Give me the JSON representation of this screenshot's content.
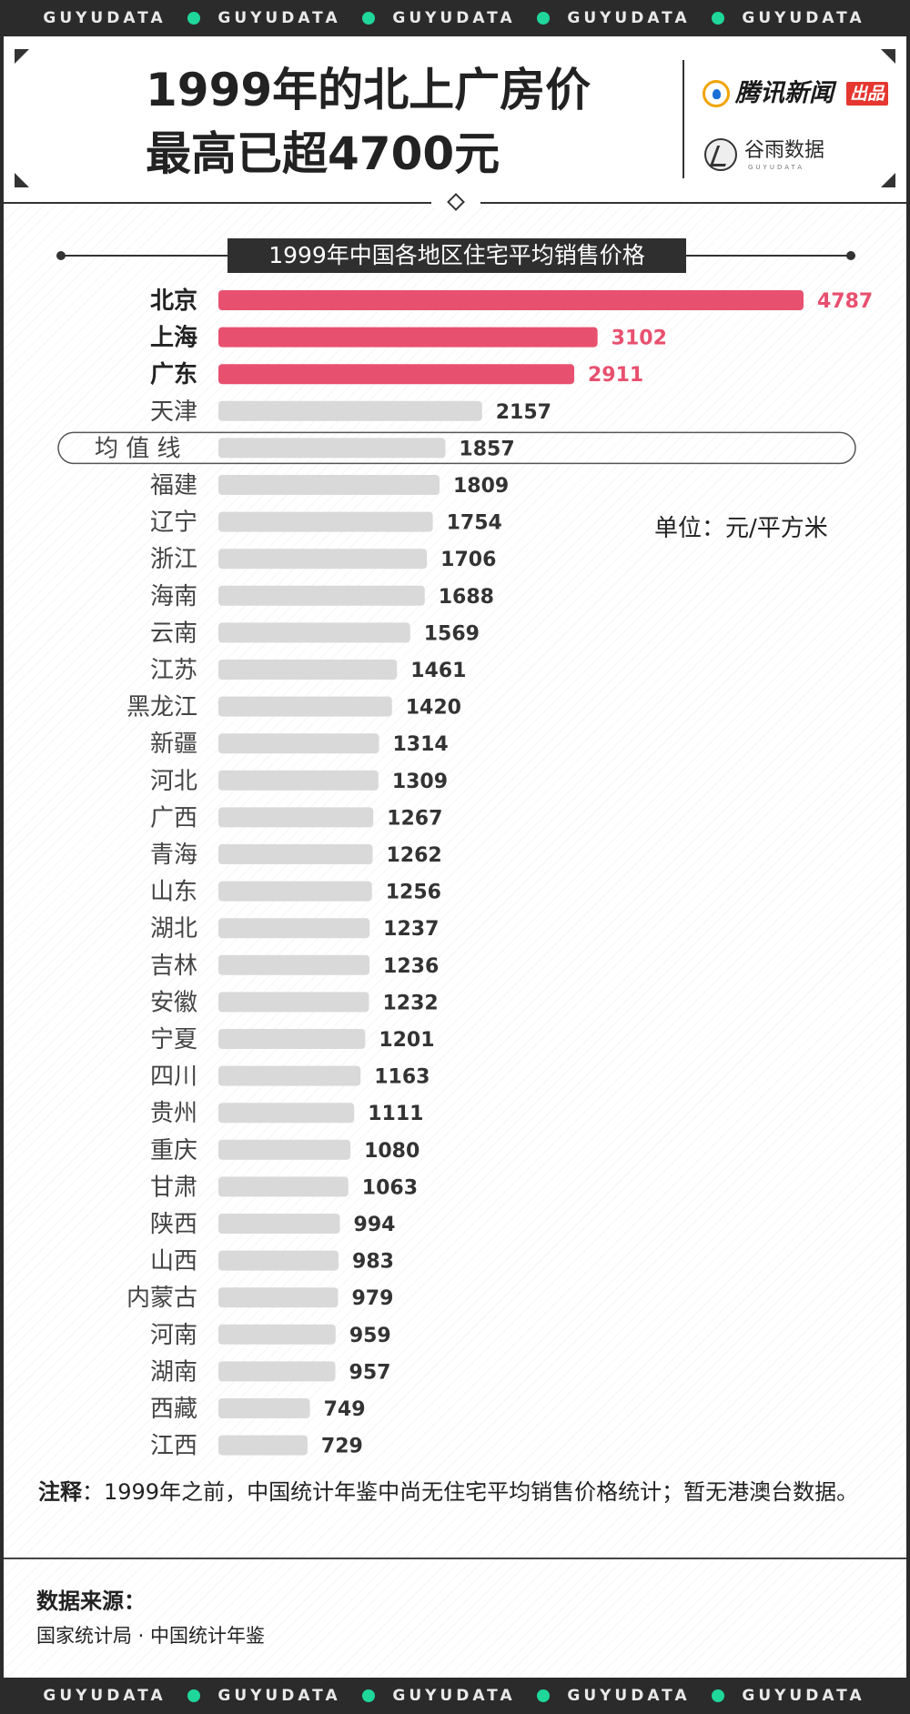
{
  "brand_strip": [
    "GUYUDATA",
    "GUYUDATA",
    "GUYUDATA",
    "GUYUDATA",
    "GUYUDATA"
  ],
  "header": {
    "title_line1": "1999年的北上广房价",
    "title_line2": "最高已超4700元",
    "logo1_name": "腾讯新闻",
    "logo1_badge": "出品",
    "logo2_name": "谷雨数据",
    "logo2_sub": "GUYUDATA"
  },
  "unit_label": "单位：元/平方米",
  "note_label": "注释",
  "note_text": "：1999年之前，中国统计年鉴中尚无住宅平均销售价格统计；暂无港澳台数据。",
  "source_title": "数据来源：",
  "source_text": "国家统计局 · 中国统计年鉴",
  "colors": {
    "highlight": "#e8506f",
    "bar": "#d9d9d9",
    "dark": "#2b2b2b",
    "accent_dot": "#1fd79a"
  },
  "chart_data": {
    "type": "bar",
    "orientation": "horizontal",
    "title": "1999年中国各地区住宅平均销售价格",
    "unit": "元/平方米",
    "categories": [
      "北京",
      "上海",
      "广东",
      "天津",
      "均值线",
      "福建",
      "辽宁",
      "浙江",
      "海南",
      "云南",
      "江苏",
      "黑龙江",
      "新疆",
      "河北",
      "广西",
      "青海",
      "山东",
      "湖北",
      "吉林",
      "安徽",
      "宁夏",
      "四川",
      "贵州",
      "重庆",
      "甘肃",
      "陕西",
      "山西",
      "内蒙古",
      "河南",
      "湖南",
      "西藏",
      "江西"
    ],
    "values": [
      4787,
      3102,
      2911,
      2157,
      1857,
      1809,
      1754,
      1706,
      1688,
      1569,
      1461,
      1420,
      1314,
      1309,
      1267,
      1262,
      1256,
      1237,
      1236,
      1232,
      1201,
      1163,
      1111,
      1080,
      1063,
      994,
      983,
      979,
      959,
      957,
      749,
      729
    ],
    "highlighted": [
      "北京",
      "上海",
      "广东"
    ],
    "average_label": "均 值 线",
    "average_value": 1857,
    "xlim": [
      0,
      4787
    ]
  }
}
